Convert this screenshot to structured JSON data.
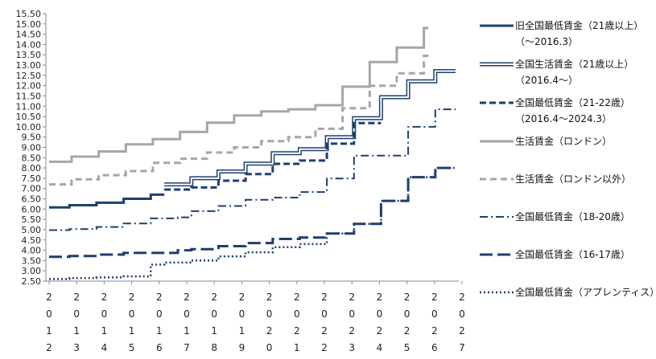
{
  "chart_data": {
    "type": "line",
    "title": "",
    "xlabel": "",
    "ylabel": "",
    "ylim": [
      2.5,
      15.5
    ],
    "y_ticks": [
      "2.50",
      "3.00",
      "3.50",
      "4.00",
      "4.50",
      "5.00",
      "5.50",
      "6.00",
      "6.50",
      "7.00",
      "7.50",
      "8.00",
      "8.50",
      "9.00",
      "9.50",
      "10.00",
      "10.50",
      "11.00",
      "11.50",
      "12.00",
      "12.50",
      "13.00",
      "13.50",
      "14.00",
      "14.50",
      "15.00",
      "15.50"
    ],
    "x_ticks": [
      "2012",
      "2013",
      "2014",
      "2015",
      "2016",
      "2017",
      "2018",
      "2019",
      "2020",
      "2021",
      "2022",
      "2023",
      "2024",
      "2025",
      "2026",
      "2027"
    ],
    "xlim": [
      2012,
      2027
    ],
    "grid": false,
    "legend_position": "right",
    "series": [
      {
        "name": "旧全国最低賃金（21歳以上）",
        "name_line2": "（～2016.3）",
        "style": "solid-thick",
        "color": "#1f3f6e",
        "x": [
          2012.0,
          2012.75,
          2013.75,
          2014.75,
          2015.75,
          2016.25
        ],
        "values": [
          6.08,
          6.19,
          6.31,
          6.5,
          6.7,
          6.7
        ]
      },
      {
        "name": "全国生活賃金（21歳以上）",
        "name_line2": "（2016.4～）",
        "style": "double",
        "color": "#1f3f6e",
        "x": [
          2016.25,
          2017.25,
          2018.25,
          2019.25,
          2020.25,
          2021.25,
          2022.25,
          2023.25,
          2024.25,
          2025.25,
          2026.25,
          2027.0
        ],
        "values": [
          7.2,
          7.5,
          7.83,
          8.21,
          8.72,
          8.91,
          9.5,
          10.42,
          11.44,
          12.21,
          12.71,
          12.71
        ]
      },
      {
        "name": "全国最低賃金（21-22歳）",
        "name_line2": "（2016.4～2024.3）",
        "style": "dashed",
        "color": "#1f3f6e",
        "x": [
          2016.25,
          2017.25,
          2018.25,
          2019.25,
          2020.25,
          2021.25,
          2022.25,
          2023.25,
          2024.25
        ],
        "values": [
          6.95,
          7.05,
          7.38,
          7.7,
          8.2,
          8.36,
          9.18,
          10.18,
          10.18
        ]
      },
      {
        "name": "生活賃金（ロンドン）",
        "style": "solid-gray",
        "color": "#a6a6a6",
        "x": [
          2012.0,
          2012.83,
          2013.83,
          2014.83,
          2015.83,
          2016.83,
          2017.83,
          2018.83,
          2019.83,
          2020.83,
          2021.83,
          2022.83,
          2023.83,
          2024.83,
          2025.83,
          2026.0
        ],
        "values": [
          8.3,
          8.55,
          8.8,
          9.15,
          9.4,
          9.75,
          10.2,
          10.55,
          10.75,
          10.85,
          11.05,
          11.95,
          13.15,
          13.85,
          14.8,
          14.8
        ]
      },
      {
        "name": "生活賃金（ロンドン以外）",
        "style": "dashed-gray",
        "color": "#a6a6a6",
        "x": [
          2012.0,
          2012.83,
          2013.83,
          2014.83,
          2015.83,
          2016.83,
          2017.83,
          2018.83,
          2019.83,
          2020.83,
          2021.83,
          2022.83,
          2023.83,
          2024.83,
          2025.83,
          2026.0
        ],
        "values": [
          7.2,
          7.45,
          7.65,
          7.85,
          8.25,
          8.45,
          8.75,
          9.0,
          9.3,
          9.5,
          9.9,
          10.9,
          12.0,
          12.6,
          13.45,
          13.45
        ]
      },
      {
        "name": "全国最低賃金（18-20歳）",
        "style": "dash-dot",
        "color": "#1f3f6e",
        "x": [
          2012.0,
          2012.75,
          2013.75,
          2014.75,
          2015.75,
          2016.75,
          2017.25,
          2018.25,
          2019.25,
          2020.25,
          2021.25,
          2022.25,
          2023.25,
          2024.25,
          2025.25,
          2026.25,
          2027.0
        ],
        "values": [
          4.98,
          5.03,
          5.13,
          5.3,
          5.55,
          5.6,
          5.9,
          6.15,
          6.45,
          6.56,
          6.83,
          7.49,
          8.6,
          8.6,
          10.0,
          10.85,
          10.85
        ]
      },
      {
        "name": "全国最低賃金（16-17歳）",
        "style": "long-dash",
        "color": "#1f3f6e",
        "x": [
          2012.0,
          2012.75,
          2013.75,
          2014.75,
          2015.75,
          2016.75,
          2017.25,
          2018.25,
          2019.25,
          2020.25,
          2021.25,
          2022.25,
          2023.25,
          2024.25,
          2025.25,
          2026.25,
          2027.0
        ],
        "values": [
          3.68,
          3.72,
          3.79,
          3.87,
          3.87,
          4.0,
          4.05,
          4.2,
          4.35,
          4.55,
          4.62,
          4.81,
          5.28,
          6.4,
          7.55,
          8.0,
          8.0
        ]
      },
      {
        "name": "全国最低賃金（アプレンティス）",
        "style": "dotted",
        "color": "#1f3f6e",
        "x": [
          2012.0,
          2012.75,
          2013.75,
          2014.75,
          2015.75,
          2016.25,
          2017.25,
          2018.25,
          2019.25,
          2020.25,
          2021.25,
          2022.25,
          2023.25,
          2024.25,
          2025.25,
          2026.25,
          2027.0
        ],
        "values": [
          2.6,
          2.65,
          2.68,
          2.73,
          3.3,
          3.4,
          3.5,
          3.7,
          3.9,
          4.15,
          4.3,
          4.81,
          5.28,
          6.4,
          7.55,
          8.0,
          8.0
        ]
      }
    ]
  }
}
